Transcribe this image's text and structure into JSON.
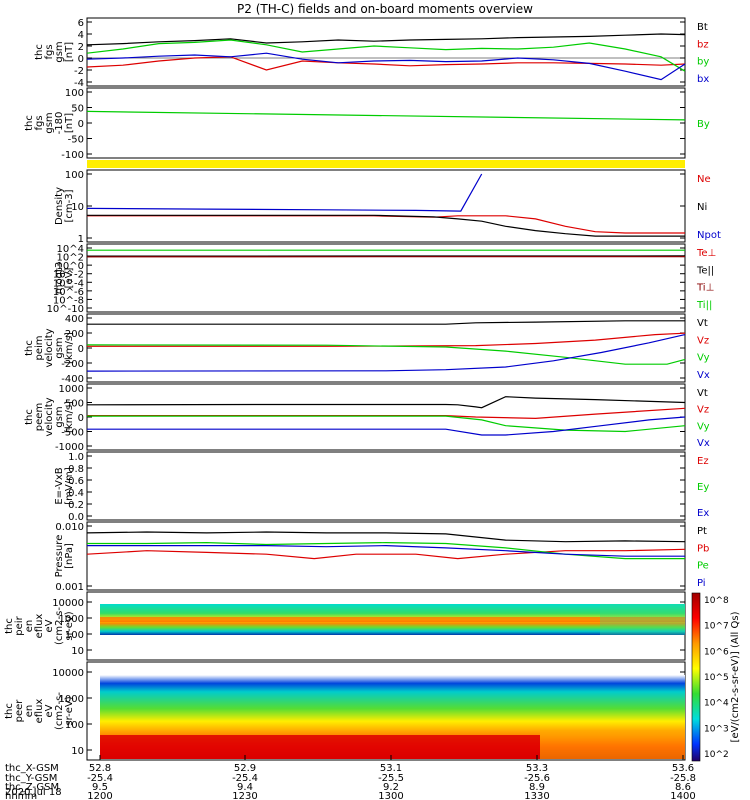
{
  "title": "P2 (TH-C) fields and on-board moments overview",
  "colors": {
    "black": "#000000",
    "red": "#dd0000",
    "green": "#00cc00",
    "blue": "#0000cc",
    "darkred": "#880000",
    "yellow": "#ffee00"
  },
  "colorbar": {
    "label": "[eV/(cm2-s-sr-eV)] (All Qs)",
    "ticks": [
      "10^8",
      "10^7",
      "10^6",
      "10^5",
      "10^4",
      "10^3",
      "10^2"
    ]
  },
  "footer": {
    "rows": [
      {
        "label": "thc_X-GSM",
        "values": [
          "52.8",
          "52.9",
          "53.1",
          "53.3",
          "53.6"
        ]
      },
      {
        "label": "thc_Y-GSM",
        "values": [
          "-25.4",
          "-25.4",
          "-25.5",
          "-25.6",
          "-25.8"
        ]
      },
      {
        "label": "thc_Z-GSM",
        "values": [
          "9.5",
          "9.4",
          "9.2",
          "8.9",
          "8.6"
        ]
      },
      {
        "label": "hhmm",
        "values": [
          "1200",
          "1230",
          "1300",
          "1330",
          "1400"
        ]
      }
    ],
    "date": "2020 Jul 18"
  },
  "chart_data": [
    {
      "type": "line",
      "id": "fgs",
      "ylabel": [
        "thc",
        "fgs",
        "gsm",
        "[nT]"
      ],
      "ylim": [
        -4,
        6
      ],
      "yticks": [
        "6",
        "4",
        "2",
        "0",
        "-2",
        "-4"
      ],
      "x_hhmm": [
        "1200",
        "1230",
        "1300",
        "1330",
        "1400"
      ],
      "series": [
        {
          "name": "Bt",
          "color": "black",
          "x": [
            0,
            0.06,
            0.12,
            0.18,
            0.24,
            0.3,
            0.36,
            0.42,
            0.48,
            0.54,
            0.6,
            0.66,
            0.72,
            0.78,
            0.84,
            0.9,
            0.96,
            1.0
          ],
          "values": [
            2.2,
            2.4,
            2.7,
            2.9,
            3.2,
            2.5,
            2.7,
            3.0,
            2.8,
            3.0,
            3.1,
            3.2,
            3.4,
            3.5,
            3.6,
            3.8,
            4.0,
            3.9
          ]
        },
        {
          "name": "bz",
          "color": "red",
          "x": [
            0,
            0.06,
            0.12,
            0.18,
            0.24,
            0.3,
            0.36,
            0.42,
            0.48,
            0.54,
            0.6,
            0.66,
            0.72,
            0.78,
            0.84,
            0.9,
            0.96,
            1.0
          ],
          "values": [
            -1.5,
            -1.2,
            -0.5,
            0,
            0.2,
            -2,
            -0.5,
            -0.8,
            -1,
            -1.3,
            -1.1,
            -1,
            -0.8,
            -0.8,
            -0.9,
            -1,
            -1.2,
            -1
          ]
        },
        {
          "name": "by",
          "color": "green",
          "x": [
            0,
            0.06,
            0.12,
            0.18,
            0.24,
            0.3,
            0.36,
            0.42,
            0.48,
            0.54,
            0.6,
            0.66,
            0.72,
            0.78,
            0.84,
            0.9,
            0.96,
            1.0
          ],
          "values": [
            0.8,
            1.5,
            2.4,
            2.6,
            3.0,
            2.2,
            1.0,
            1.5,
            2.0,
            1.7,
            1.4,
            1.6,
            1.5,
            1.8,
            2.5,
            1.5,
            0.2,
            -2.2
          ]
        },
        {
          "name": "bx",
          "color": "blue",
          "x": [
            0,
            0.06,
            0.12,
            0.18,
            0.24,
            0.3,
            0.36,
            0.42,
            0.48,
            0.54,
            0.6,
            0.66,
            0.72,
            0.78,
            0.84,
            0.9,
            0.96,
            1.0
          ],
          "values": [
            -0.2,
            0,
            0.3,
            0.5,
            0.2,
            0.8,
            -0.2,
            -0.8,
            -0.5,
            -0.4,
            -0.6,
            -0.5,
            0,
            -0.3,
            -0.9,
            -2.2,
            -3.6,
            -1
          ]
        }
      ]
    },
    {
      "type": "line",
      "id": "fgs-dsl",
      "ylabel": [
        "thc",
        "fgs",
        "gsm",
        "-180",
        "[nT]"
      ],
      "ylim": [
        -130,
        110
      ],
      "yticks": [
        "100",
        "50",
        "0",
        "-50",
        "-100"
      ],
      "series": [
        {
          "name": "By",
          "color": "green",
          "x": [
            0,
            1
          ],
          "values": [
            35,
            2
          ]
        }
      ]
    },
    {
      "type": "line",
      "id": "density",
      "scale": "log",
      "ylabel": [
        "Density",
        "[cm-3]"
      ],
      "ylim": [
        0.5,
        200
      ],
      "yticks": [
        "100",
        "10",
        "1"
      ],
      "series": [
        {
          "name": "Ne",
          "color": "red",
          "x": [
            0,
            0.3,
            0.48,
            0.58,
            0.62,
            0.66,
            0.68,
            0.7,
            0.75,
            0.8,
            0.85,
            0.9,
            1.0
          ],
          "values": [
            4,
            4,
            4,
            3.5,
            4,
            4,
            4,
            4,
            3,
            1.5,
            0.9,
            0.8,
            0.8
          ]
        },
        {
          "name": "Ni",
          "color": "black",
          "x": [
            0,
            0.3,
            0.48,
            0.58,
            0.62,
            0.66,
            0.7,
            0.75,
            0.8,
            0.85,
            0.9,
            1.0
          ],
          "values": [
            4.2,
            4.2,
            4.2,
            3.6,
            3,
            2.4,
            1.5,
            1,
            0.75,
            0.6,
            0.6,
            0.6
          ]
        },
        {
          "name": "Npot",
          "color": "blue",
          "x": [
            0,
            0.2,
            0.4,
            0.55,
            0.625,
            0.66
          ],
          "values": [
            8,
            7.5,
            7,
            6.6,
            6.2,
            200
          ]
        }
      ]
    },
    {
      "type": "line",
      "id": "mom-temp",
      "scale": "log",
      "ylabel": [
        "moqt3",
        "[eV]"
      ],
      "yticks": [
        "10^4",
        "10^2",
        "10^0",
        "10^-2",
        "10^-4",
        "10^-6",
        "10^-8",
        "10^-10"
      ],
      "series": [
        {
          "name": "Te⊥",
          "color": "red",
          "x": [
            0,
            1
          ],
          "values": [
            100,
            120
          ]
        },
        {
          "name": "Te||",
          "color": "black",
          "x": [
            0,
            1
          ],
          "values": [
            130,
            140
          ]
        },
        {
          "name": "Ti⊥",
          "color": "darkred",
          "x": [
            0,
            1
          ],
          "values": [
            90,
            100
          ]
        },
        {
          "name": "Ti||",
          "color": "green",
          "x": [
            0,
            1
          ],
          "values": [
            3000,
            3000
          ]
        }
      ]
    },
    {
      "type": "line",
      "id": "peim-velocity",
      "ylabel": [
        "thc",
        "peim",
        "velocity",
        "gsm",
        "[km/s]"
      ],
      "ylim": [
        -450,
        420
      ],
      "yticks": [
        "400",
        "200",
        "0",
        "-200",
        "-400"
      ],
      "series": [
        {
          "name": "Vt",
          "color": "black",
          "x": [
            0,
            0.3,
            0.6,
            0.65,
            0.75,
            0.9,
            1.0
          ],
          "values": [
            330,
            330,
            330,
            350,
            360,
            380,
            380
          ]
        },
        {
          "name": "Vz",
          "color": "red",
          "x": [
            0,
            0.4,
            0.65,
            0.75,
            0.85,
            0.95,
            1.0
          ],
          "values": [
            10,
            10,
            20,
            50,
            100,
            180,
            200
          ]
        },
        {
          "name": "Vy",
          "color": "green",
          "x": [
            0,
            0.4,
            0.6,
            0.7,
            0.8,
            0.9,
            0.97,
            1.0
          ],
          "values": [
            30,
            25,
            0,
            -60,
            -150,
            -250,
            -250,
            -180
          ]
        },
        {
          "name": "Vx",
          "color": "blue",
          "x": [
            0,
            0.5,
            0.6,
            0.7,
            0.78,
            0.86,
            0.94,
            1.0
          ],
          "values": [
            -350,
            -345,
            -330,
            -290,
            -200,
            -80,
            60,
            180
          ]
        }
      ]
    },
    {
      "type": "line",
      "id": "peem-velocity",
      "ylabel": [
        "thc",
        "peem",
        "velocity",
        "gsm",
        "[km/s]"
      ],
      "ylim": [
        -1000,
        1000
      ],
      "yticks": [
        "1000",
        "500",
        "0",
        "-500",
        "-1000"
      ],
      "series": [
        {
          "name": "Vt",
          "color": "black",
          "x": [
            0,
            0.3,
            0.6,
            0.62,
            0.65,
            0.66,
            0.7,
            0.75,
            0.85,
            1.0
          ],
          "values": [
            420,
            430,
            430,
            420,
            350,
            320,
            700,
            650,
            600,
            500
          ]
        },
        {
          "name": "Vz",
          "color": "red",
          "x": [
            0,
            0.6,
            0.65,
            0.75,
            0.85,
            1.0
          ],
          "values": [
            50,
            50,
            0,
            -50,
            100,
            300
          ]
        },
        {
          "name": "Vy",
          "color": "green",
          "x": [
            0,
            0.6,
            0.66,
            0.7,
            0.8,
            0.9,
            1.0
          ],
          "values": [
            30,
            30,
            -100,
            -300,
            -450,
            -500,
            -300
          ]
        },
        {
          "name": "Vx",
          "color": "blue",
          "x": [
            0,
            0.6,
            0.66,
            0.7,
            0.78,
            0.86,
            0.94,
            1.0
          ],
          "values": [
            -420,
            -420,
            -620,
            -620,
            -500,
            -300,
            -100,
            0
          ]
        }
      ]
    },
    {
      "type": "line",
      "id": "e-vxb",
      "ylabel": [
        "E=-VxB",
        "[mV/m]"
      ],
      "ylim": [
        0,
        1
      ],
      "yticks": [
        "1.0",
        "0.8",
        "0.6",
        "0.4",
        "0.2",
        "0.0"
      ],
      "series": [
        {
          "name": "Ez",
          "color": "red",
          "x": [],
          "values": []
        },
        {
          "name": "Ey",
          "color": "green",
          "x": [],
          "values": []
        },
        {
          "name": "Ex",
          "color": "blue",
          "x": [],
          "values": []
        }
      ]
    },
    {
      "type": "line",
      "id": "pressure",
      "scale": "log",
      "ylabel": [
        "Pressure",
        "[nPa]"
      ],
      "yticks": [
        "0.010",
        "0.001"
      ],
      "series": [
        {
          "name": "Pt",
          "color": "black",
          "x": [
            0,
            0.1,
            0.2,
            0.3,
            0.4,
            0.5,
            0.6,
            0.7,
            0.8,
            0.9,
            1.0
          ],
          "values": [
            0.016,
            0.017,
            0.016,
            0.017,
            0.016,
            0.016,
            0.015,
            0.01,
            0.009,
            0.0095,
            0.009
          ]
        },
        {
          "name": "Pb",
          "color": "red",
          "x": [
            0,
            0.1,
            0.2,
            0.3,
            0.38,
            0.45,
            0.55,
            0.62,
            0.7,
            0.8,
            0.9,
            1.0
          ],
          "values": [
            0.004,
            0.005,
            0.0045,
            0.004,
            0.003,
            0.004,
            0.004,
            0.003,
            0.004,
            0.005,
            0.005,
            0.0055
          ]
        },
        {
          "name": "Pe",
          "color": "green",
          "x": [
            0,
            0.1,
            0.2,
            0.3,
            0.4,
            0.5,
            0.6,
            0.7,
            0.8,
            0.9,
            1.0
          ],
          "values": [
            0.008,
            0.008,
            0.0085,
            0.0075,
            0.008,
            0.0085,
            0.008,
            0.006,
            0.004,
            0.003,
            0.003
          ]
        },
        {
          "name": "Pi",
          "color": "blue",
          "x": [
            0,
            0.1,
            0.2,
            0.3,
            0.4,
            0.5,
            0.6,
            0.7,
            0.8,
            0.9,
            1.0
          ],
          "values": [
            0.007,
            0.007,
            0.007,
            0.007,
            0.0065,
            0.007,
            0.006,
            0.005,
            0.004,
            0.0035,
            0.0035
          ]
        }
      ]
    },
    {
      "type": "heatmap",
      "id": "peir-en-eflux",
      "ylabel": [
        "thc",
        "peir",
        "en",
        "eflux",
        "eV",
        "(cm2-s-",
        "sr-eV)"
      ],
      "yticks": [
        "10000",
        "1000",
        "100",
        "10"
      ]
    },
    {
      "type": "heatmap",
      "id": "peer-en-eflux",
      "ylabel": [
        "thc",
        "peer",
        "en",
        "eflux",
        "eV",
        "(cm2-s-",
        "sr-eV)"
      ],
      "yticks": [
        "10000",
        "1000",
        "100",
        "10"
      ]
    }
  ]
}
